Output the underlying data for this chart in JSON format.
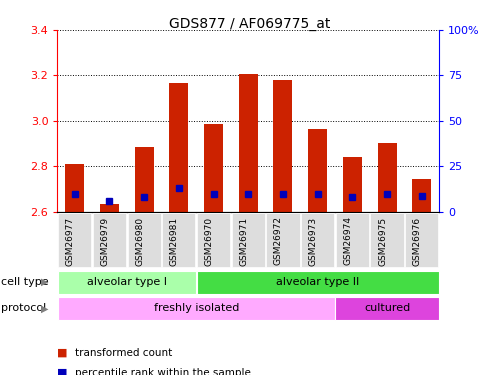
{
  "title": "GDS877 / AF069775_at",
  "samples": [
    "GSM26977",
    "GSM26979",
    "GSM26980",
    "GSM26981",
    "GSM26970",
    "GSM26971",
    "GSM26972",
    "GSM26973",
    "GSM26974",
    "GSM26975",
    "GSM26976"
  ],
  "red_values": [
    2.81,
    2.635,
    2.885,
    3.165,
    2.985,
    3.205,
    3.18,
    2.965,
    2.84,
    2.905,
    2.745
  ],
  "blue_percentile": [
    10,
    6,
    8,
    13,
    10,
    10,
    10,
    10,
    8,
    10,
    9
  ],
  "ymin": 2.6,
  "ymax": 3.4,
  "yticks": [
    2.6,
    2.8,
    3.0,
    3.2,
    3.4
  ],
  "right_yticks": [
    0,
    25,
    50,
    75,
    100
  ],
  "cell_type_labels": [
    "alveolar type I",
    "alveolar type II"
  ],
  "cell_type_n": [
    4,
    7
  ],
  "cell_type_colors": [
    "#aaffaa",
    "#44dd44"
  ],
  "protocol_labels": [
    "freshly isolated",
    "cultured"
  ],
  "protocol_n": [
    8,
    3
  ],
  "protocol_colors": [
    "#ffaaff",
    "#dd44dd"
  ],
  "legend_items": [
    "transformed count",
    "percentile rank within the sample"
  ],
  "bar_color": "#cc2200",
  "blue_color": "#0000bb",
  "bar_width": 0.55
}
